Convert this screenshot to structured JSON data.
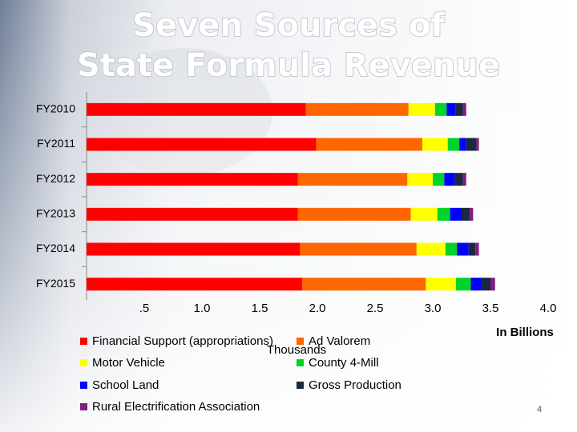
{
  "chart_data": {
    "type": "stacked-bar-horizontal",
    "title": [
      "Seven Sources of",
      "State Formula Revenue"
    ],
    "categories": [
      "FY2010",
      "FY2011",
      "FY2012",
      "FY2013",
      "FY2014",
      "FY2015"
    ],
    "series": [
      {
        "name": "Financial Support (appropriations)",
        "color": "#ff0000",
        "values": [
          1.9,
          1.99,
          1.83,
          1.83,
          1.85,
          1.87
        ]
      },
      {
        "name": "Ad Valorem",
        "color": "#ff6600",
        "values": [
          0.89,
          0.92,
          0.95,
          0.98,
          1.01,
          1.07
        ]
      },
      {
        "name": "Motor Vehicle",
        "color": "#ffff00",
        "values": [
          0.23,
          0.22,
          0.22,
          0.23,
          0.25,
          0.26
        ]
      },
      {
        "name": "County 4-Mill",
        "color": "#00d42a",
        "values": [
          0.1,
          0.1,
          0.1,
          0.11,
          0.1,
          0.13
        ]
      },
      {
        "name": "School Land",
        "color": "#0000ff",
        "values": [
          0.08,
          0.06,
          0.09,
          0.1,
          0.1,
          0.09
        ]
      },
      {
        "name": "Gross Production",
        "color": "#1c2740",
        "values": [
          0.06,
          0.09,
          0.07,
          0.07,
          0.06,
          0.08
        ]
      },
      {
        "name": "Rural Electrification Association",
        "color": "#7f1f80",
        "values": [
          0.03,
          0.02,
          0.03,
          0.03,
          0.03,
          0.04
        ]
      }
    ],
    "xlim": [
      0,
      4
    ],
    "xticks": [
      {
        "value": 0.5,
        "label": ".5"
      },
      {
        "value": 1,
        "label": "1.0"
      },
      1.5,
      {
        "value": 2,
        "label": "2.0"
      },
      2.5,
      {
        "value": 3,
        "label": "3.0"
      },
      3.5,
      {
        "value": 4,
        "label": "4.0"
      }
    ],
    "x_axis_label": "In Billions",
    "legend_note": "Thousands",
    "page_number": "4"
  }
}
